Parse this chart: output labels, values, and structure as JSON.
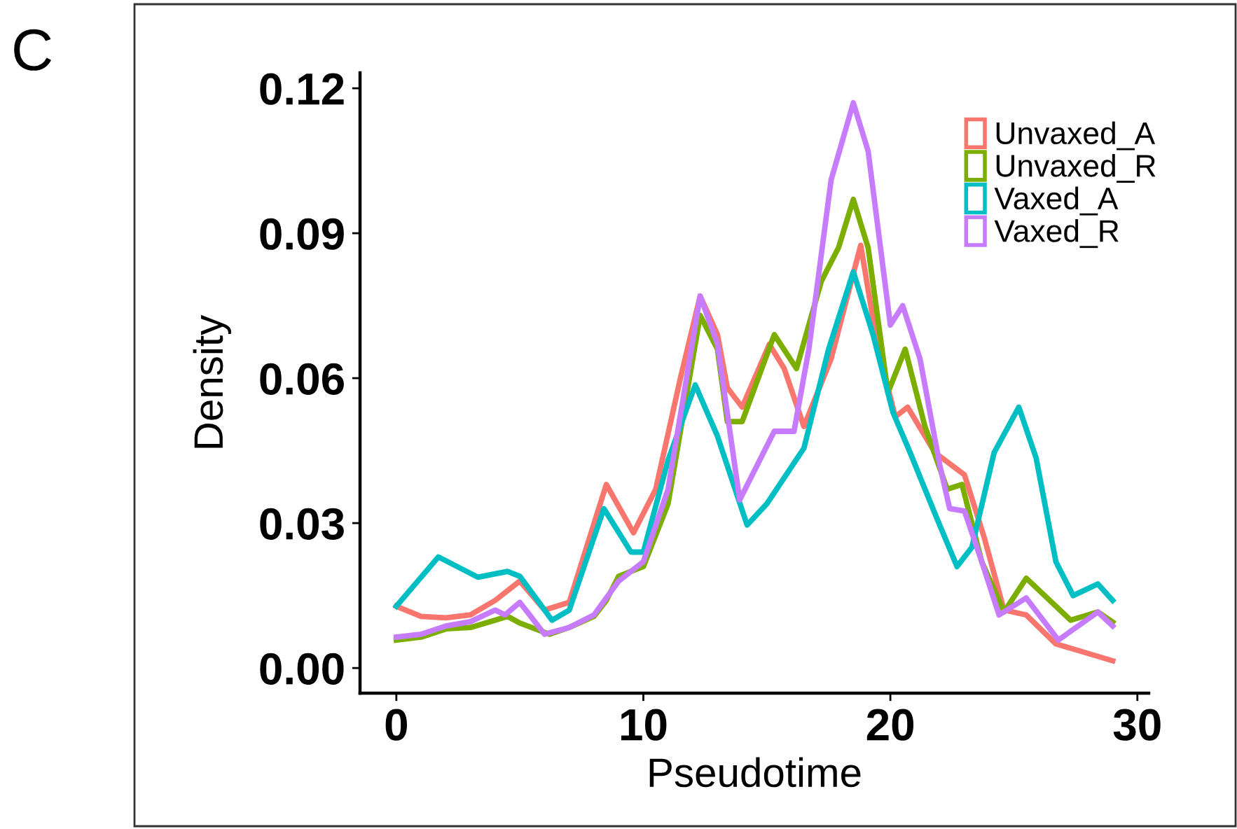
{
  "chart_data": {
    "type": "line",
    "xlabel": "Pseudotime",
    "ylabel": "Density",
    "annotations": [
      "C"
    ],
    "xlim": [
      -1.47,
      30.46
    ],
    "ylim": [
      -0.0052,
      0.1232
    ],
    "xticks": [
      0,
      10,
      20,
      30
    ],
    "yticks": [
      {
        "value": 0,
        "label": "0.00"
      },
      {
        "value": 0.03,
        "label": "0.03"
      },
      {
        "value": 0.06,
        "label": "0.06"
      },
      {
        "value": 0.09,
        "label": "0.09"
      },
      {
        "value": 0.12,
        "label": "0.12"
      }
    ],
    "grid": false,
    "legend": "top right",
    "marker": "none",
    "line_style": "solid",
    "series": [
      {
        "name": "Unvaxed_A",
        "color": "#f8766d",
        "x": [
          0,
          1,
          2,
          3,
          4,
          5,
          6,
          7,
          8.5,
          9.6,
          10.5,
          11.5,
          12.3,
          13,
          13.4,
          14,
          15.1,
          15.7,
          16.5,
          17.6,
          18.8,
          19.5,
          20.2,
          20.7,
          21.8,
          23,
          23.8,
          24.6,
          25.5,
          26.7,
          29
        ],
        "values": [
          0.0128,
          0.0107,
          0.0104,
          0.011,
          0.014,
          0.018,
          0.012,
          0.0136,
          0.038,
          0.028,
          0.037,
          0.06,
          0.077,
          0.069,
          0.058,
          0.054,
          0.067,
          0.062,
          0.05,
          0.064,
          0.0875,
          0.066,
          0.052,
          0.054,
          0.0446,
          0.04,
          0.027,
          0.012,
          0.011,
          0.005,
          0.0015
        ]
      },
      {
        "name": "Unvaxed_R",
        "color": "#7cae00",
        "x": [
          0,
          1,
          2,
          3,
          4,
          4.5,
          5,
          6.2,
          7,
          8,
          8.5,
          9,
          10,
          11,
          12.3,
          13,
          13.4,
          14,
          15.3,
          16.2,
          17.2,
          17.9,
          18.5,
          19.1,
          19.9,
          20.6,
          21.4,
          22.3,
          22.9,
          23.7,
          24.6,
          25.5,
          27.3,
          28.4,
          29
        ],
        "values": [
          0.0058,
          0.0064,
          0.0081,
          0.0084,
          0.0099,
          0.0107,
          0.0093,
          0.007,
          0.0084,
          0.0107,
          0.014,
          0.019,
          0.021,
          0.034,
          0.073,
          0.066,
          0.051,
          0.051,
          0.069,
          0.062,
          0.08,
          0.087,
          0.097,
          0.087,
          0.057,
          0.066,
          0.05,
          0.037,
          0.038,
          0.022,
          0.0116,
          0.0186,
          0.0099,
          0.0116,
          0.0095
        ]
      },
      {
        "name": "Vaxed_A",
        "color": "#00bfc4",
        "x": [
          0,
          1.7,
          3.3,
          4.5,
          5,
          6.3,
          7,
          8,
          8.4,
          9.5,
          10,
          11,
          12.1,
          13,
          14.2,
          15,
          16.5,
          17.5,
          18.5,
          19.3,
          20.1,
          20.8,
          21.8,
          22.7,
          23.3,
          24.2,
          25.2,
          25.9,
          26.7,
          27.4,
          28.4,
          29
        ],
        "values": [
          0.0128,
          0.023,
          0.0188,
          0.02,
          0.019,
          0.0099,
          0.012,
          0.027,
          0.033,
          0.024,
          0.024,
          0.043,
          0.0586,
          0.048,
          0.0296,
          0.034,
          0.0455,
          0.066,
          0.082,
          0.069,
          0.053,
          0.0446,
          0.032,
          0.021,
          0.025,
          0.0446,
          0.054,
          0.0435,
          0.022,
          0.015,
          0.0174,
          0.014
        ]
      },
      {
        "name": "Vaxed_R",
        "color": "#c77cff",
        "x": [
          0,
          1,
          2,
          3,
          4,
          4.4,
          5,
          6,
          7,
          8,
          9,
          10,
          11,
          12.3,
          13,
          13.9,
          15.3,
          16.1,
          16.7,
          17.6,
          18.5,
          19.1,
          20,
          20.5,
          21.2,
          22,
          22.4,
          23,
          23.7,
          24.4,
          25.5,
          26.8,
          28.4,
          29
        ],
        "values": [
          0.0064,
          0.007,
          0.0087,
          0.0096,
          0.012,
          0.011,
          0.0136,
          0.007,
          0.0084,
          0.011,
          0.018,
          0.022,
          0.037,
          0.077,
          0.067,
          0.0348,
          0.049,
          0.049,
          0.066,
          0.101,
          0.117,
          0.107,
          0.071,
          0.075,
          0.064,
          0.042,
          0.033,
          0.0325,
          0.022,
          0.011,
          0.0145,
          0.0058,
          0.0116,
          0.0087
        ]
      }
    ]
  }
}
